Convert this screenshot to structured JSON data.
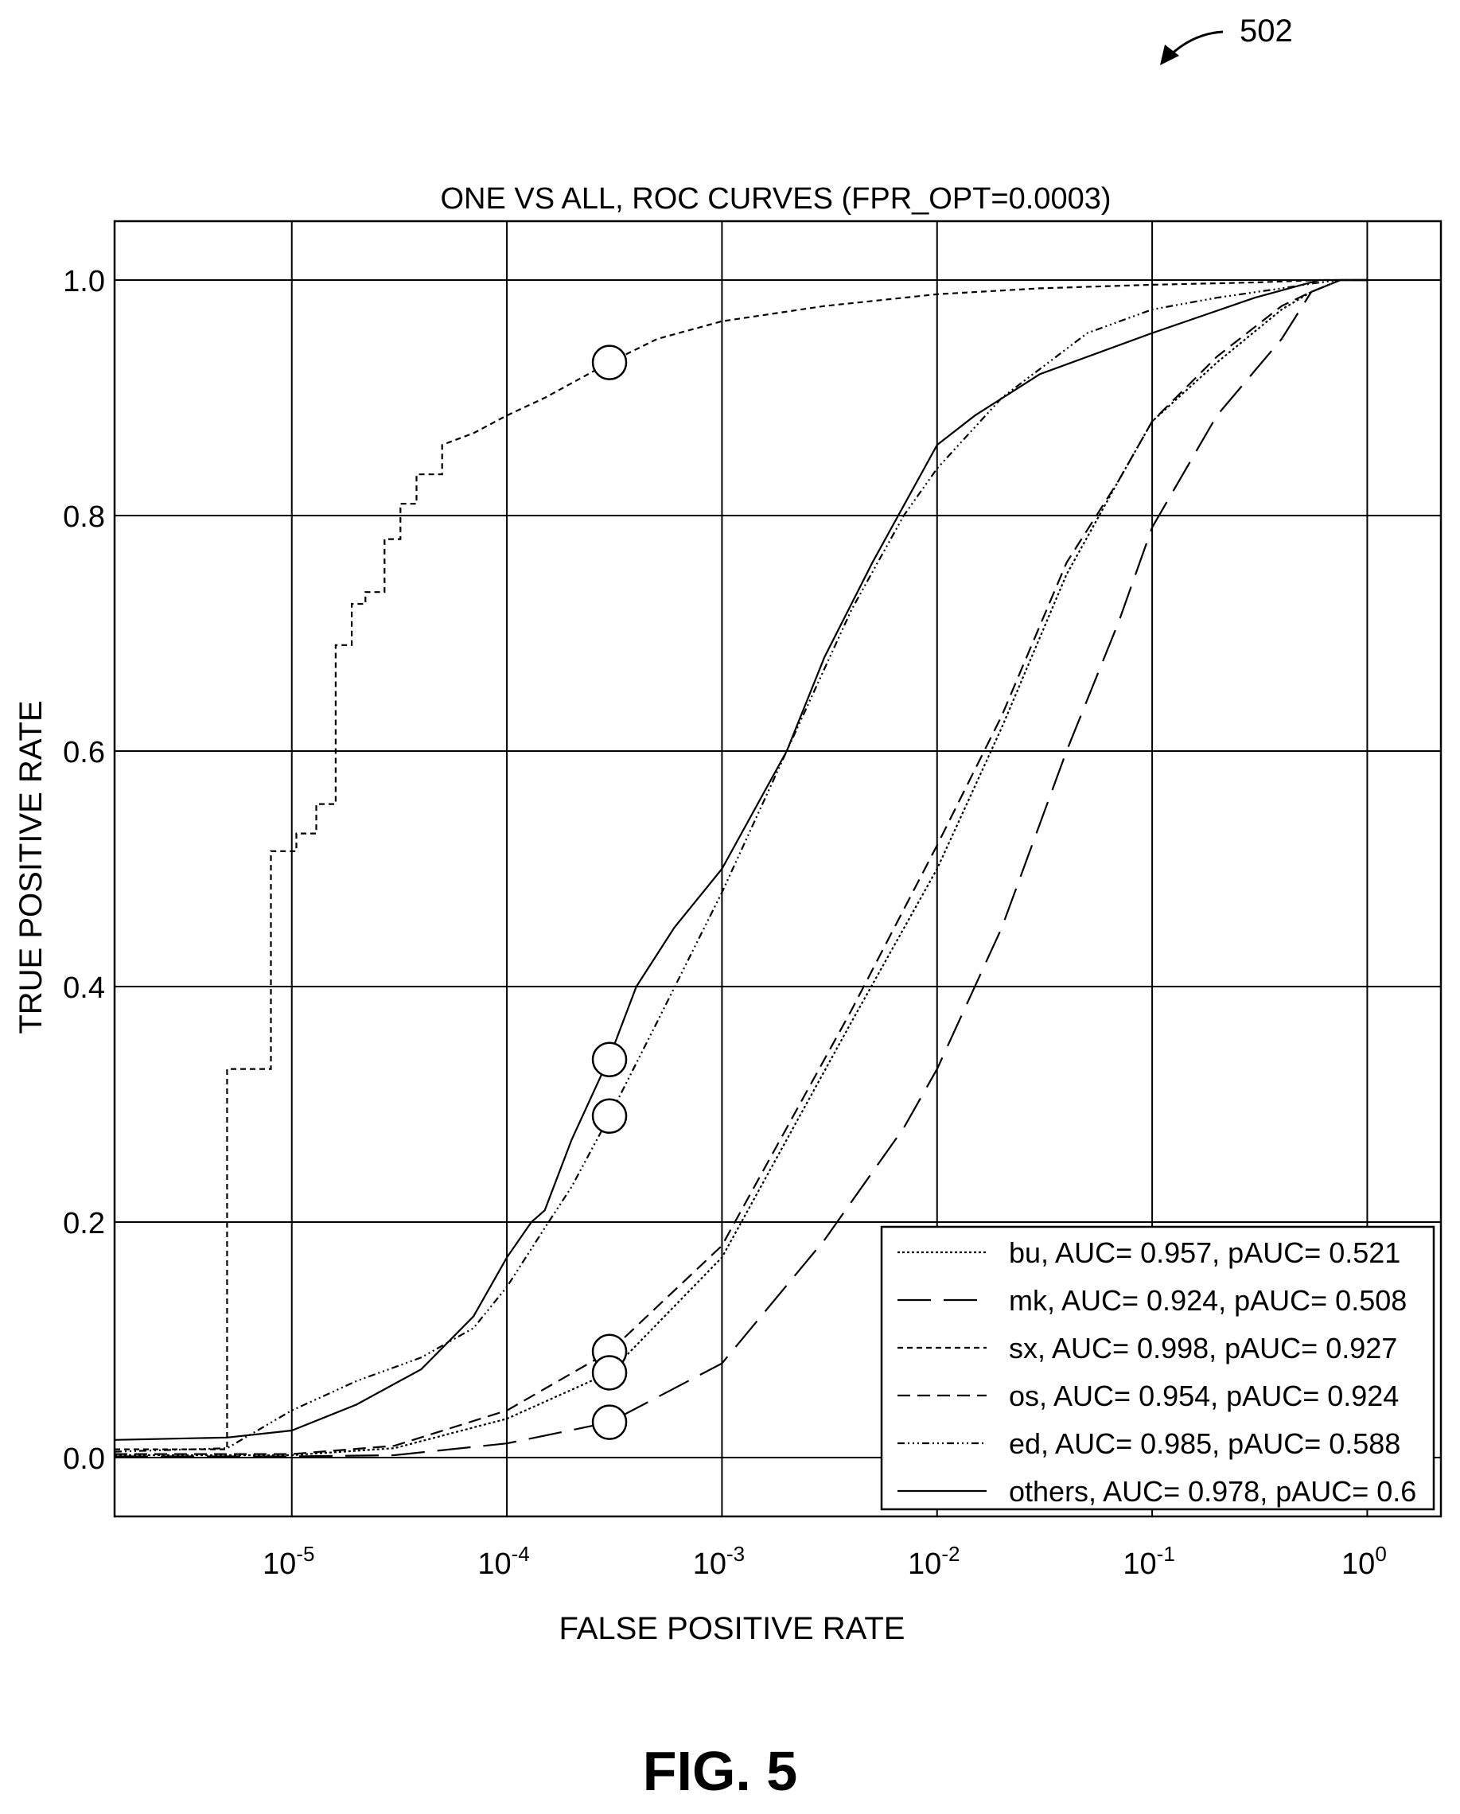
{
  "ref_numeral": "502",
  "figure_label": "FIG. 5",
  "chart_data": {
    "type": "line",
    "title": "ONE VS ALL, ROC CURVES (FPR_OPT=0.0003)",
    "xlabel": "FALSE POSITIVE RATE",
    "ylabel": "TRUE POSITIVE RATE",
    "x_scale": "log",
    "xlim": [
      1.5e-06,
      2.2
    ],
    "ylim": [
      -0.05,
      1.05
    ],
    "x_ticks": [
      {
        "value": 1e-05,
        "base": "10",
        "exp": "-5"
      },
      {
        "value": 0.0001,
        "base": "10",
        "exp": "-4"
      },
      {
        "value": 0.001,
        "base": "10",
        "exp": "-3"
      },
      {
        "value": 0.01,
        "base": "10",
        "exp": "-2"
      },
      {
        "value": 0.1,
        "base": "10",
        "exp": "-1"
      },
      {
        "value": 1,
        "base": "10",
        "exp": "0"
      }
    ],
    "y_ticks": [
      {
        "value": 0.0,
        "label": "0.0"
      },
      {
        "value": 0.2,
        "label": "0.2"
      },
      {
        "value": 0.4,
        "label": "0.4"
      },
      {
        "value": 0.6,
        "label": "0.6"
      },
      {
        "value": 0.8,
        "label": "0.8"
      },
      {
        "value": 1.0,
        "label": "1.0"
      }
    ],
    "grid": true,
    "legend_position": "lower-right",
    "series": [
      {
        "name": "bu, AUC= 0.957, pAUC= 0.521",
        "dash": "3,3",
        "x": [
          1.5e-06,
          1e-05,
          3e-05,
          0.0001,
          0.0003,
          0.001,
          0.002,
          0.004,
          0.01,
          0.02,
          0.04,
          0.07,
          0.1,
          0.2,
          0.4,
          0.55,
          0.75,
          1.0
        ],
        "y": [
          0.002,
          0.002,
          0.008,
          0.033,
          0.072,
          0.17,
          0.27,
          0.37,
          0.5,
          0.62,
          0.75,
          0.83,
          0.88,
          0.93,
          0.975,
          0.99,
          1.0,
          1.0
        ]
      },
      {
        "name": "mk, AUC= 0.924, pAUC= 0.508",
        "dash": "42,16",
        "x": [
          1.5e-06,
          1e-05,
          3e-05,
          0.0001,
          0.0003,
          0.001,
          0.003,
          0.007,
          0.01,
          0.02,
          0.04,
          0.07,
          0.1,
          0.2,
          0.4,
          0.55,
          0.75,
          1.0
        ],
        "y": [
          0.001,
          0.001,
          0.002,
          0.012,
          0.03,
          0.08,
          0.185,
          0.28,
          0.33,
          0.45,
          0.6,
          0.71,
          0.79,
          0.885,
          0.95,
          0.99,
          1.0,
          1.0
        ]
      },
      {
        "name": "sx, AUC= 0.998, pAUC= 0.927",
        "dash": "7,5",
        "step": true,
        "x": [
          1.5e-06,
          5e-06,
          5e-06,
          8e-06,
          8e-06,
          1.05e-05,
          1.05e-05,
          1.3e-05,
          1.3e-05,
          1.6e-05,
          1.6e-05,
          1.9e-05,
          1.9e-05,
          2.2e-05,
          2.2e-05,
          2.7e-05,
          2.7e-05,
          3.2e-05,
          3.2e-05,
          3.8e-05,
          3.8e-05,
          5e-05,
          5e-05,
          7e-05,
          0.0001,
          0.00015,
          0.0003,
          0.0005,
          0.001,
          0.003,
          0.01,
          0.03,
          0.1,
          0.3,
          0.6,
          1.0
        ],
        "y": [
          0.007,
          0.007,
          0.33,
          0.33,
          0.515,
          0.515,
          0.53,
          0.53,
          0.555,
          0.555,
          0.69,
          0.69,
          0.725,
          0.725,
          0.735,
          0.735,
          0.78,
          0.78,
          0.81,
          0.81,
          0.835,
          0.835,
          0.86,
          0.87,
          0.885,
          0.9,
          0.93,
          0.95,
          0.965,
          0.978,
          0.988,
          0.993,
          0.996,
          0.998,
          1.0,
          1.0
        ]
      },
      {
        "name": "os, AUC= 0.954, pAUC= 0.924",
        "dash": "16,9",
        "x": [
          1.5e-06,
          1e-05,
          3e-05,
          0.0001,
          0.0003,
          0.001,
          0.002,
          0.004,
          0.01,
          0.02,
          0.04,
          0.07,
          0.1,
          0.2,
          0.4,
          0.55,
          0.75,
          1.0
        ],
        "y": [
          0.003,
          0.003,
          0.01,
          0.04,
          0.09,
          0.18,
          0.28,
          0.38,
          0.52,
          0.63,
          0.76,
          0.83,
          0.88,
          0.935,
          0.978,
          0.99,
          1.0,
          1.0
        ]
      },
      {
        "name": "ed, AUC= 0.985, pAUC= 0.588",
        "dash": "9,4,2,4,2,4,2,4",
        "x": [
          1.5e-06,
          5e-06,
          1e-05,
          2e-05,
          4e-05,
          7e-05,
          0.0001,
          0.00015,
          0.0002,
          0.0003,
          0.0005,
          0.001,
          0.002,
          0.004,
          0.007,
          0.01,
          0.02,
          0.05,
          0.1,
          0.2,
          0.4,
          0.55,
          0.75,
          1.0
        ],
        "y": [
          0.005,
          0.008,
          0.04,
          0.065,
          0.085,
          0.11,
          0.145,
          0.195,
          0.23,
          0.29,
          0.37,
          0.48,
          0.6,
          0.72,
          0.8,
          0.84,
          0.9,
          0.955,
          0.975,
          0.985,
          0.993,
          0.997,
          1.0,
          1.0
        ]
      },
      {
        "name": "others, AUC= 0.978, pAUC= 0.6",
        "dash": "",
        "x": [
          1.5e-06,
          5e-06,
          1e-05,
          2e-05,
          4e-05,
          7e-05,
          0.0001,
          0.00013,
          0.00015,
          0.0002,
          0.0003,
          0.0004,
          0.0006,
          0.001,
          0.002,
          0.003,
          0.005,
          0.01,
          0.015,
          0.03,
          0.1,
          0.3,
          0.6,
          1.0
        ],
        "y": [
          0.015,
          0.017,
          0.023,
          0.045,
          0.075,
          0.12,
          0.17,
          0.2,
          0.21,
          0.27,
          0.34,
          0.4,
          0.45,
          0.5,
          0.6,
          0.68,
          0.76,
          0.86,
          0.885,
          0.92,
          0.955,
          0.985,
          1.0,
          1.0
        ]
      }
    ],
    "markers": [
      {
        "x": 0.0003,
        "y": 0.93
      },
      {
        "x": 0.0003,
        "y": 0.338
      },
      {
        "x": 0.0003,
        "y": 0.29
      },
      {
        "x": 0.0003,
        "y": 0.09
      },
      {
        "x": 0.0003,
        "y": 0.072
      },
      {
        "x": 0.0003,
        "y": 0.03
      }
    ]
  }
}
